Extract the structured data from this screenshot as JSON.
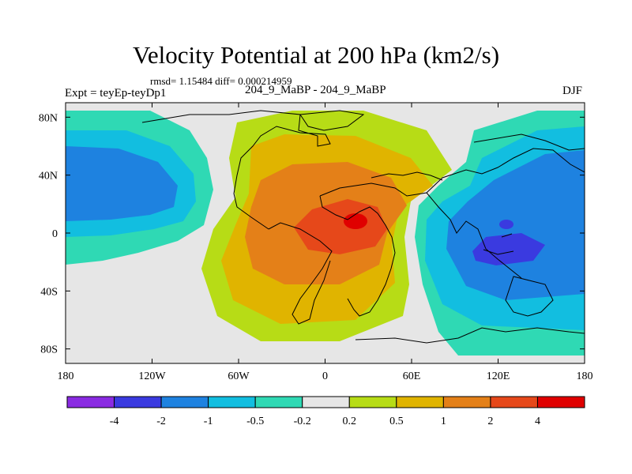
{
  "chart_data": {
    "type": "heatmap",
    "title": "Velocity Potential at 200 hPa (km2/s)",
    "stats": "rmsd= 1.15484 diff= 0.000214959",
    "left_label": "Expt = teyEp-teyDp1",
    "center_label": "204_9_MaBP - 204_9_MaBP",
    "right_label": "DJF",
    "xlim": [
      -180,
      180
    ],
    "ylim": [
      -90,
      90
    ],
    "x_ticks": [
      {
        "value": -180,
        "label": "180"
      },
      {
        "value": -120,
        "label": "120W"
      },
      {
        "value": -60,
        "label": "60W"
      },
      {
        "value": 0,
        "label": "0"
      },
      {
        "value": 60,
        "label": "60E"
      },
      {
        "value": 120,
        "label": "120E"
      },
      {
        "value": 180,
        "label": "180"
      }
    ],
    "y_ticks": [
      {
        "value": 80,
        "label": "80N"
      },
      {
        "value": 40,
        "label": "40N"
      },
      {
        "value": 0,
        "label": "0"
      },
      {
        "value": -40,
        "label": "40S"
      },
      {
        "value": -80,
        "label": "80S"
      }
    ],
    "colorbar": {
      "colors": [
        "#8a2be2",
        "#3a3ae0",
        "#1e82e0",
        "#12bee0",
        "#2fd9b4",
        "#e6e6e6",
        "#b7dc16",
        "#e0b400",
        "#e48018",
        "#e6481a",
        "#e00000"
      ],
      "levels": [
        "-4",
        "-2",
        "-1",
        "-0.5",
        "-0.2",
        "0.2",
        "0.5",
        "1",
        "2",
        "4"
      ]
    },
    "field_levels_shown": {
      "positive_center_lon": 20,
      "positive_center_lat": 10,
      "positive_max_level": "4",
      "negative_center_lon": 130,
      "negative_center_lat": -10,
      "negative_min_level": "-2"
    }
  }
}
